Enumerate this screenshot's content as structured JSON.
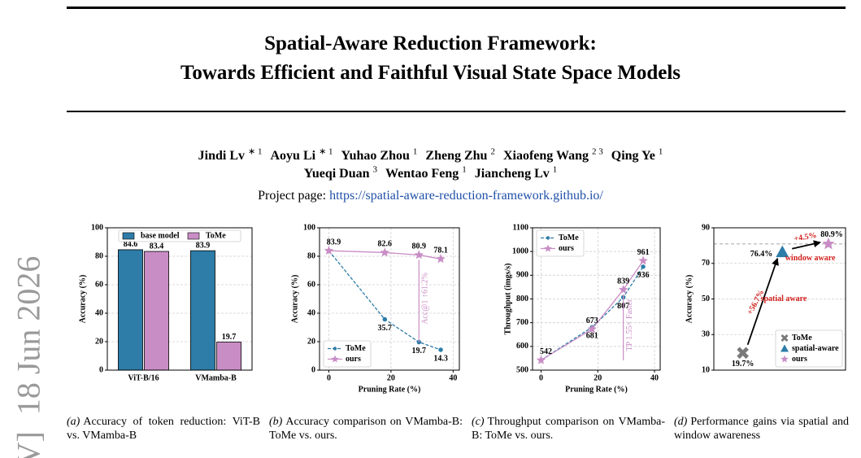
{
  "side_stamp": "V]  18 Jun 2026",
  "title": [
    "Spatial-Aware Reduction Framework:",
    "Towards Efficient and Faithful Visual State Space Models"
  ],
  "author_lines": [
    [
      {
        "name": "Jindi Lv",
        "affil": "∗ 1"
      },
      {
        "name": "Aoyu Li",
        "affil": "∗ 1"
      },
      {
        "name": "Yuhao Zhou",
        "affil": "1"
      },
      {
        "name": "Zheng Zhu",
        "affil": "2"
      },
      {
        "name": "Xiaofeng Wang",
        "affil": "2 3"
      },
      {
        "name": "Qing Ye",
        "affil": "1"
      }
    ],
    [
      {
        "name": "Yueqi Duan",
        "affil": "3"
      },
      {
        "name": "Wentao Feng",
        "affil": "1"
      },
      {
        "name": "Jiancheng Lv",
        "affil": "1"
      }
    ]
  ],
  "project_page": {
    "label": "Project page:",
    "url": "https://spatial-aware-reduction-framework.github.io/"
  },
  "chart_data": [
    {
      "type": "bar",
      "categories": [
        "ViT-B/16",
        "VMamba-B"
      ],
      "series": [
        {
          "name": "base model",
          "color": "#2e7ca8",
          "values": [
            84.6,
            83.9
          ]
        },
        {
          "name": "ToMe",
          "color": "#c98dc6",
          "values": [
            83.4,
            19.7
          ]
        }
      ],
      "ylim": [
        0,
        100
      ],
      "yticks": [
        0,
        20,
        40,
        60,
        80,
        100
      ],
      "ylabel": "Accuracy (%)",
      "legend": "upper center",
      "grid": true
    },
    {
      "type": "line",
      "x": [
        0,
        18,
        29,
        36
      ],
      "series": [
        {
          "name": "ToMe",
          "color": "#2e7ca8",
          "marker": "circle",
          "linestyle": "dashed",
          "values": [
            83.9,
            35.7,
            19.7,
            14.3
          ]
        },
        {
          "name": "ours",
          "color": "#c98dc6",
          "marker": "star",
          "linestyle": "solid",
          "values": [
            83.9,
            82.6,
            80.9,
            78.1
          ]
        }
      ],
      "xlim": [
        -3,
        42
      ],
      "xticks": [
        0,
        20,
        40
      ],
      "ylim": [
        0,
        100
      ],
      "yticks": [
        0,
        20,
        40,
        60,
        80,
        100
      ],
      "xlabel": "Pruning Rate (%)",
      "ylabel": "Accuracy (%)",
      "annotations": [
        "Acc@1 ↑61.2%"
      ],
      "legend": "lower left",
      "grid": true
    },
    {
      "type": "line",
      "x": [
        0,
        18,
        29,
        36
      ],
      "series": [
        {
          "name": "ToMe",
          "color": "#2e7ca8",
          "marker": "circle",
          "linestyle": "dashed",
          "values": [
            542,
            681,
            807,
            936
          ]
        },
        {
          "name": "ours",
          "color": "#c98dc6",
          "marker": "star",
          "linestyle": "solid",
          "values": [
            542,
            673,
            839,
            961
          ]
        }
      ],
      "xlim": [
        -3,
        42
      ],
      "xticks": [
        0,
        20,
        40
      ],
      "ylim": [
        500,
        1100
      ],
      "yticks": [
        500,
        600,
        700,
        800,
        900,
        1000,
        1100
      ],
      "xlabel": "Pruning Rate (%)",
      "ylabel": "Throughput (imgs/s)",
      "annotations": [
        "TP 1.55× Faster"
      ],
      "legend": "upper left",
      "grid": true
    },
    {
      "type": "scatter",
      "series": [
        {
          "name": "ToMe",
          "color": "#7a7a7a",
          "marker": "x",
          "values": [
            19.7
          ],
          "value_labels": [
            "19.7%"
          ]
        },
        {
          "name": "spatial-aware",
          "color": "#2e7ca8",
          "marker": "triangle",
          "values": [
            76.4
          ],
          "value_labels": [
            "76.4%"
          ]
        },
        {
          "name": "ours",
          "color": "#c98dc6",
          "marker": "star",
          "values": [
            80.9
          ],
          "value_labels": [
            "80.9%"
          ]
        }
      ],
      "ylim": [
        10,
        90
      ],
      "yticks": [
        10,
        30,
        50,
        70,
        90
      ],
      "ylabel": "Accuracy (%)",
      "annotations": [
        "+56.7%",
        "spatial aware",
        "+4.5%",
        "window aware"
      ],
      "legend": "lower right",
      "grid": true
    }
  ],
  "captions": [
    {
      "tag": "(a)",
      "text": "Accuracy of token reduction: ViT-B vs. VMamba-B"
    },
    {
      "tag": "(b)",
      "text": "Accuracy comparison on VMamba-B: ToMe vs. ours."
    },
    {
      "tag": "(c)",
      "text": "Throughput comparison on VMamba-B: ToMe vs. ours."
    },
    {
      "tag": "(d)",
      "text": "Performance gains via spatial and window awareness"
    }
  ]
}
